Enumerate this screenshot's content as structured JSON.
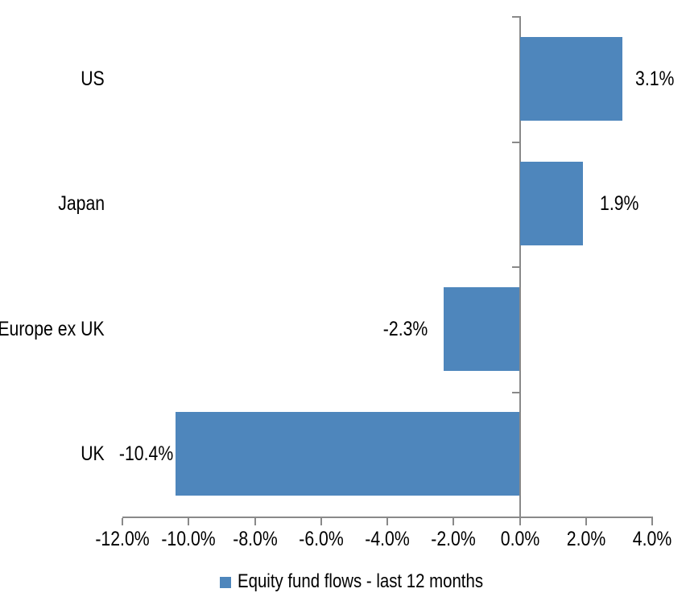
{
  "chart_data": {
    "type": "bar",
    "orientation": "horizontal",
    "title": "",
    "categories": [
      "US",
      "Japan",
      "Europe ex UK",
      "UK"
    ],
    "values": [
      3.1,
      1.9,
      -2.3,
      -10.4
    ],
    "value_labels": [
      "3.1%",
      "1.9%",
      "-2.3%",
      "-10.4%"
    ],
    "series": [
      {
        "name": "Equity fund flows - last 12 months",
        "values": [
          3.1,
          1.9,
          -2.3,
          -10.4
        ]
      }
    ],
    "xlabel": "",
    "ylabel": "",
    "xlim": [
      -12,
      4
    ],
    "x_tick_step": 2,
    "x_tick_labels": [
      "-12.0%",
      "-10.0%",
      "-8.0%",
      "-6.0%",
      "-4.0%",
      "-2.0%",
      "0.0%",
      "2.0%",
      "4.0%"
    ],
    "grid": false,
    "legend": {
      "position": "bottom",
      "label": "Equity fund flows - last 12 months"
    },
    "colors": {
      "bar": "#4E86BC",
      "axis_line": "#898989",
      "text": "#000000"
    }
  }
}
